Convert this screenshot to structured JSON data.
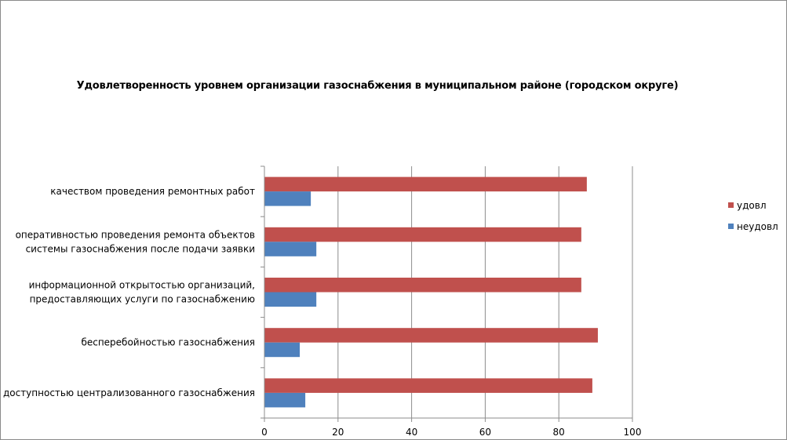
{
  "chart_data": {
    "type": "bar",
    "orientation": "horizontal",
    "title": "Удовлетворенность уровнем организации газоснабжения в муниципальном районе (городском округе)",
    "categories": [
      [
        "качеством  проведения  ремонтных  работ"
      ],
      [
        "оперативностью  проведения  ремонта объектов",
        "системы газоснабжения после подачи заявки"
      ],
      [
        "информационной  открытостью организаций,",
        "предоставляющих  услуги по газоснабжению"
      ],
      [
        "бесперебойностью  газоснабжения"
      ],
      [
        "доступностью централизованного газоснабжения"
      ]
    ],
    "series": [
      {
        "name": "удовл",
        "color": "#c0504d",
        "values": [
          87.5,
          86,
          86,
          90.5,
          89
        ]
      },
      {
        "name": "неудовл",
        "color": "#4f81bd",
        "values": [
          12.5,
          14,
          14,
          9.5,
          11
        ]
      }
    ],
    "xlim": [
      0,
      100
    ],
    "xticks": [
      "0",
      "20",
      "40",
      "60",
      "80",
      "100"
    ],
    "grid": true,
    "legend": "right"
  }
}
